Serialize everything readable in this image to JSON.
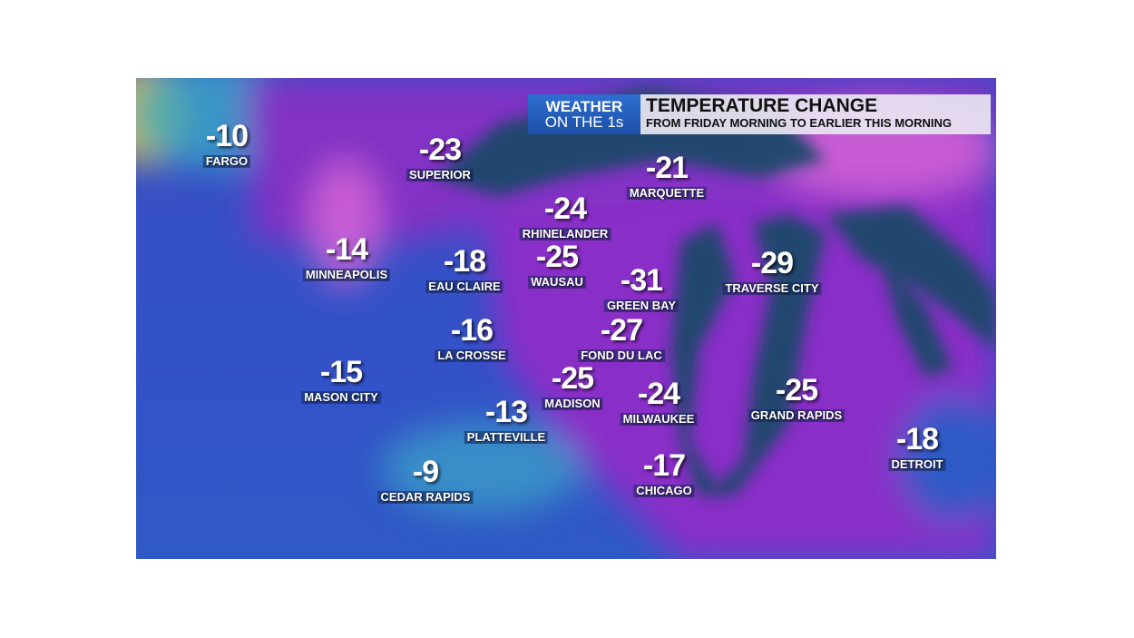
{
  "header": {
    "brand_line1": "WEATHER",
    "brand_line2": "ON THE 1s",
    "title": "TEMPERATURE CHANGE",
    "subtitle": "FROM FRIDAY MORNING TO EARLIER THIS MORNING"
  },
  "colors": {
    "cold_blue": "#3552c6",
    "purple": "#8a2fc8",
    "magenta": "#d867d8",
    "lake": "#1f4a6a",
    "teal": "#3aa6c8",
    "yellow": "#d8c020"
  },
  "cities": [
    {
      "name": "FARGO",
      "change": "-10"
    },
    {
      "name": "SUPERIOR",
      "change": "-23"
    },
    {
      "name": "MARQUETTE",
      "change": "-21"
    },
    {
      "name": "RHINELANDER",
      "change": "-24"
    },
    {
      "name": "MINNEAPOLIS",
      "change": "-14"
    },
    {
      "name": "EAU CLAIRE",
      "change": "-18"
    },
    {
      "name": "WAUSAU",
      "change": "-25"
    },
    {
      "name": "GREEN BAY",
      "change": "-31"
    },
    {
      "name": "TRAVERSE CITY",
      "change": "-29"
    },
    {
      "name": "LA CROSSE",
      "change": "-16"
    },
    {
      "name": "FOND DU LAC",
      "change": "-27"
    },
    {
      "name": "MASON CITY",
      "change": "-15"
    },
    {
      "name": "MADISON",
      "change": "-25"
    },
    {
      "name": "MILWAUKEE",
      "change": "-24"
    },
    {
      "name": "GRAND RAPIDS",
      "change": "-25"
    },
    {
      "name": "PLATTEVILLE",
      "change": "-13"
    },
    {
      "name": "DETROIT",
      "change": "-18"
    },
    {
      "name": "CEDAR RAPIDS",
      "change": "-9"
    },
    {
      "name": "CHICAGO",
      "change": "-17"
    }
  ]
}
